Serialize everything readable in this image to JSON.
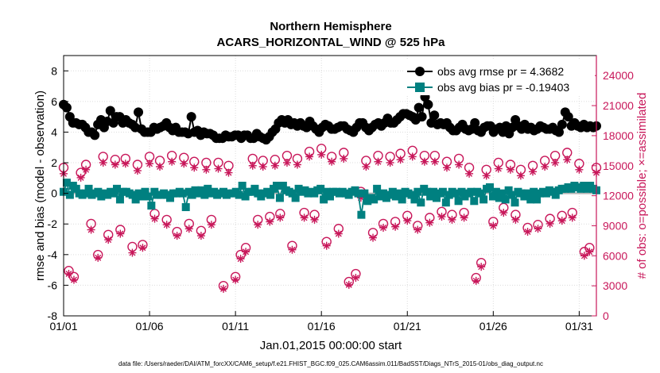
{
  "chart_data": {
    "type": "line",
    "title": "Northern Hemisphere",
    "subtitle": "ACARS_HORIZONTAL_WIND @ 525 hPa",
    "xlabel": "Jan.01,2015 00:00:00 start",
    "ylabel": "rmse and bias (model - observation)",
    "y2label": "# of obs: o=possible; ×=assimilated",
    "footnote": "data file: /Users/raeder/DAI/ATM_forcXX/CAM6_setup/f.e21.FHIST_BGC.f09_025.CAM6assim.011/BadSST/Diags_NTrS_2015-01/obs_diag_output.nc",
    "x_ticks": [
      "01/01",
      "01/06",
      "01/11",
      "01/16",
      "01/21",
      "01/26",
      "01/31"
    ],
    "y_ticks": [
      "-8",
      "-6",
      "-4",
      "-2",
      "0",
      "2",
      "4",
      "6",
      "8"
    ],
    "y2_ticks": [
      "0",
      "3000",
      "6000",
      "9000",
      "12000",
      "15000",
      "18000",
      "21000",
      "24000"
    ],
    "xlim": [
      1,
      32
    ],
    "ylim": [
      -8,
      9
    ],
    "y2lim": [
      0,
      26000
    ],
    "grid": true,
    "legend_position": "top-right",
    "colors": {
      "rmse": "#000000",
      "bias": "#008080",
      "count": "#c8175a",
      "zero": "#b4b4b4"
    },
    "rmse": {
      "legend": "obs avg rmse pr = 4.3682",
      "values": [
        5.8,
        5.6,
        5.0,
        4.6,
        4.6,
        4.5,
        4.5,
        4.3,
        4.0,
        4.0,
        3.8,
        4.5,
        4.8,
        4.3,
        4.7,
        5.4,
        4.6,
        5.0,
        5.0,
        4.6,
        4.8,
        4.6,
        4.5,
        4.3,
        5.3,
        4.2,
        4.0,
        4.0,
        4.0,
        4.3,
        4.2,
        4.3,
        4.4,
        4.6,
        4.3,
        4.1,
        4.3,
        4.0,
        4.0,
        4.0,
        3.9,
        5.0,
        4.0,
        4.1,
        3.8,
        4.0,
        3.9,
        3.9,
        3.8,
        3.6,
        3.6,
        3.6,
        3.8,
        3.7,
        3.7,
        3.8,
        3.8,
        3.6,
        3.8,
        3.8,
        3.6,
        3.6,
        3.9,
        3.7,
        3.6,
        3.5,
        3.7,
        4.0,
        4.2,
        4.6,
        4.8,
        4.6,
        4.8,
        4.5,
        4.6,
        4.4,
        4.6,
        4.4,
        4.3,
        4.7,
        4.4,
        4.2,
        4.0,
        4.3,
        4.5,
        4.4,
        4.2,
        4.2,
        4.3,
        4.4,
        4.4,
        4.2,
        4.1,
        4.0,
        4.3,
        4.6,
        4.6,
        4.3,
        4.1,
        4.3,
        4.5,
        4.6,
        4.4,
        4.6,
        4.9,
        4.6,
        4.6,
        4.8,
        5.0,
        5.2,
        5.2,
        5.1,
        5.0,
        4.8,
        5.6,
        5.0,
        6.3,
        5.8,
        4.6,
        5.1,
        4.5,
        4.6,
        4.5,
        4.6,
        4.3,
        4.1,
        4.1,
        4.3,
        4.5,
        4.2,
        4.1,
        4.2,
        4.6,
        4.1,
        4.0,
        4.3,
        4.4,
        4.4,
        4.0,
        4.2,
        4.3,
        4.0,
        4.4,
        3.9,
        4.3,
        4.8,
        4.4,
        4.2,
        4.5,
        4.2,
        4.3,
        4.1,
        4.2,
        4.4,
        4.3,
        4.2,
        4.2,
        4.3,
        4.1,
        4.0,
        4.5,
        5.3,
        5.0,
        4.4,
        4.6,
        4.4,
        4.3,
        4.5,
        4.3,
        4.4,
        4.3,
        4.4
      ]
    },
    "bias": {
      "legend": "obs avg bias pr = -0.19403",
      "values": [
        0.1,
        0.7,
        -0.1,
        0.5,
        0.3,
        0.0,
        -0.1,
        0.0,
        0.3,
        -0.1,
        0.0,
        0.1,
        -0.2,
        0.0,
        -0.1,
        0.1,
        0.0,
        0.3,
        -0.4,
        0.1,
        0.1,
        0.0,
        -0.1,
        -0.4,
        0.0,
        -0.2,
        0.1,
        -0.2,
        -0.8,
        0.1,
        -0.1,
        -0.1,
        0.0,
        -0.1,
        -0.3,
        0.0,
        0.0,
        0.1,
        0.0,
        -0.9,
        0.1,
        -0.1,
        0.2,
        0.0,
        0.2,
        -0.1,
        0.3,
        0.0,
        0.1,
        -0.1,
        0.0,
        0.1,
        -0.1,
        0.0,
        0.0,
        0.1,
        -0.1,
        0.5,
        -0.2,
        0.1,
        0.1,
        0.3,
        0.0,
        -0.2,
        0.0,
        0.1,
        -0.1,
        0.3,
        0.5,
        -0.3,
        0.5,
        0.2,
        0.1,
        0.0,
        -0.3,
        0.3,
        0.1,
        0.2,
        0.0,
        0.1,
        0.0,
        0.2,
        0.3,
        -0.4,
        0.1,
        -0.2,
        0.1,
        0.1,
        0.0,
        0.1,
        0.0,
        -0.1,
        0.1,
        0.2,
        0.0,
        -1.4,
        0.0,
        -0.5,
        -0.3,
        -0.4,
        0.3,
        -0.2,
        0.0,
        -0.3,
        -0.1,
        0.1,
        -0.2,
        0.0,
        -0.4,
        0.1,
        0.0,
        -0.1,
        -0.4,
        0.1,
        -0.6,
        0.3,
        0.1,
        -0.2,
        0.1,
        -0.3,
        0.0,
        0.1,
        -0.6,
        -0.1,
        0.1,
        0.0,
        -0.5,
        0.1,
        -0.2,
        0.0,
        0.1,
        -0.5,
        0.1,
        0.0,
        -0.4,
        0.3,
        0.4,
        -0.2,
        0.1,
        -0.3,
        0.0,
        -0.4,
        0.2,
        -0.1,
        -0.6,
        0.1,
        0.0,
        -0.2,
        0.0,
        -0.4,
        0.1,
        -0.4,
        0.0,
        0.1,
        0.0,
        0.2,
        0.1,
        -0.1,
        0.2,
        0.3,
        0.3,
        0.4,
        0.3,
        0.5,
        0.4,
        0.3,
        0.5,
        0.3,
        0.5,
        0.3,
        0.2
      ]
    },
    "obs_possible": {
      "x": [
        1.0,
        1.3,
        1.6,
        2.0,
        2.3,
        2.6,
        3.0,
        3.3,
        3.6,
        4.0,
        4.3,
        4.6,
        5.0,
        5.3,
        5.6,
        6.0,
        6.3,
        6.6,
        7.0,
        7.3,
        7.6,
        8.0,
        8.3,
        8.6,
        9.0,
        9.3,
        9.6,
        10.0,
        10.3,
        10.6,
        11.0,
        11.3,
        11.6,
        12.0,
        12.3,
        12.6,
        13.0,
        13.3,
        13.6,
        14.0,
        14.3,
        14.6,
        15.0,
        15.3,
        15.6,
        16.0,
        16.3,
        16.6,
        17.0,
        17.3,
        17.6,
        18.0,
        18.3,
        18.6,
        19.0,
        19.3,
        19.6,
        20.0,
        20.3,
        20.6,
        21.0,
        21.3,
        21.6,
        22.0,
        22.3,
        22.6,
        23.0,
        23.3,
        23.6,
        24.0,
        24.3,
        24.6,
        25.0,
        25.3,
        25.6,
        26.0,
        26.3,
        26.6,
        27.0,
        27.3,
        27.6,
        28.0,
        28.3,
        28.6,
        29.0,
        29.3,
        29.6,
        30.0,
        30.3,
        30.6,
        31.0,
        31.3,
        31.6,
        32.0
      ],
      "values": [
        14800,
        4500,
        3900,
        14300,
        15100,
        9200,
        6100,
        15900,
        8100,
        15600,
        8600,
        15700,
        6900,
        15100,
        7100,
        15900,
        10200,
        15500,
        9600,
        16000,
        8400,
        15800,
        9200,
        15400,
        8500,
        15300,
        9600,
        15300,
        3000,
        15000,
        3900,
        6100,
        6800,
        15700,
        9600,
        15500,
        9900,
        15600,
        10200,
        16000,
        7000,
        15700,
        10300,
        16400,
        10100,
        16700,
        7400,
        15900,
        8700,
        16300,
        3400,
        4200,
        12400,
        15500,
        8300,
        16000,
        9200,
        15900,
        9400,
        16200,
        10000,
        16500,
        9000,
        16000,
        9800,
        16000,
        10400,
        15400,
        10100,
        15700,
        10300,
        14800,
        3800,
        5300,
        14600,
        9400,
        15300,
        10800,
        15100,
        10100,
        14600,
        8800,
        15000,
        9100,
        15500,
        9700,
        16000,
        10000,
        16300,
        10300,
        15200,
        6400,
        6800,
        14800
      ]
    },
    "obs_assimilated": {
      "x": [
        1.0,
        1.3,
        1.6,
        2.0,
        2.3,
        2.6,
        3.0,
        3.3,
        3.6,
        4.0,
        4.3,
        4.6,
        5.0,
        5.3,
        5.6,
        6.0,
        6.3,
        6.6,
        7.0,
        7.3,
        7.6,
        8.0,
        8.3,
        8.6,
        9.0,
        9.3,
        9.6,
        10.0,
        10.3,
        10.6,
        11.0,
        11.3,
        11.6,
        12.0,
        12.3,
        12.6,
        13.0,
        13.3,
        13.6,
        14.0,
        14.3,
        14.6,
        15.0,
        15.3,
        15.6,
        16.0,
        16.3,
        16.6,
        17.0,
        17.3,
        17.6,
        18.0,
        18.3,
        18.6,
        19.0,
        19.3,
        19.6,
        20.0,
        20.3,
        20.6,
        21.0,
        21.3,
        21.6,
        22.0,
        22.3,
        22.6,
        23.0,
        23.3,
        23.6,
        24.0,
        24.3,
        24.6,
        25.0,
        25.3,
        25.6,
        26.0,
        26.3,
        26.6,
        27.0,
        27.3,
        27.6,
        28.0,
        28.3,
        28.6,
        29.0,
        29.3,
        29.6,
        30.0,
        30.3,
        30.6,
        31.0,
        31.3,
        31.6,
        32.0
      ],
      "values": [
        14200,
        4200,
        3600,
        13800,
        14600,
        8600,
        5800,
        15300,
        7600,
        15100,
        8200,
        15200,
        6300,
        14500,
        6800,
        15200,
        9700,
        14900,
        9100,
        15400,
        8000,
        15200,
        8700,
        14800,
        8000,
        14600,
        9100,
        14700,
        2700,
        14300,
        3600,
        5700,
        6400,
        15000,
        9100,
        14900,
        9400,
        15000,
        9800,
        15300,
        6600,
        15100,
        9800,
        15900,
        9600,
        16100,
        7000,
        15400,
        8200,
        15700,
        3100,
        3800,
        11800,
        14900,
        7800,
        15400,
        8800,
        15300,
        8900,
        15600,
        9500,
        15900,
        8600,
        15400,
        9300,
        15400,
        9900,
        14800,
        9600,
        15100,
        9800,
        14200,
        3500,
        4900,
        14000,
        9000,
        14700,
        10300,
        14600,
        9600,
        14000,
        8400,
        14400,
        8700,
        14900,
        9200,
        15300,
        9500,
        15600,
        9800,
        14600,
        6000,
        6400,
        14300
      ]
    }
  }
}
